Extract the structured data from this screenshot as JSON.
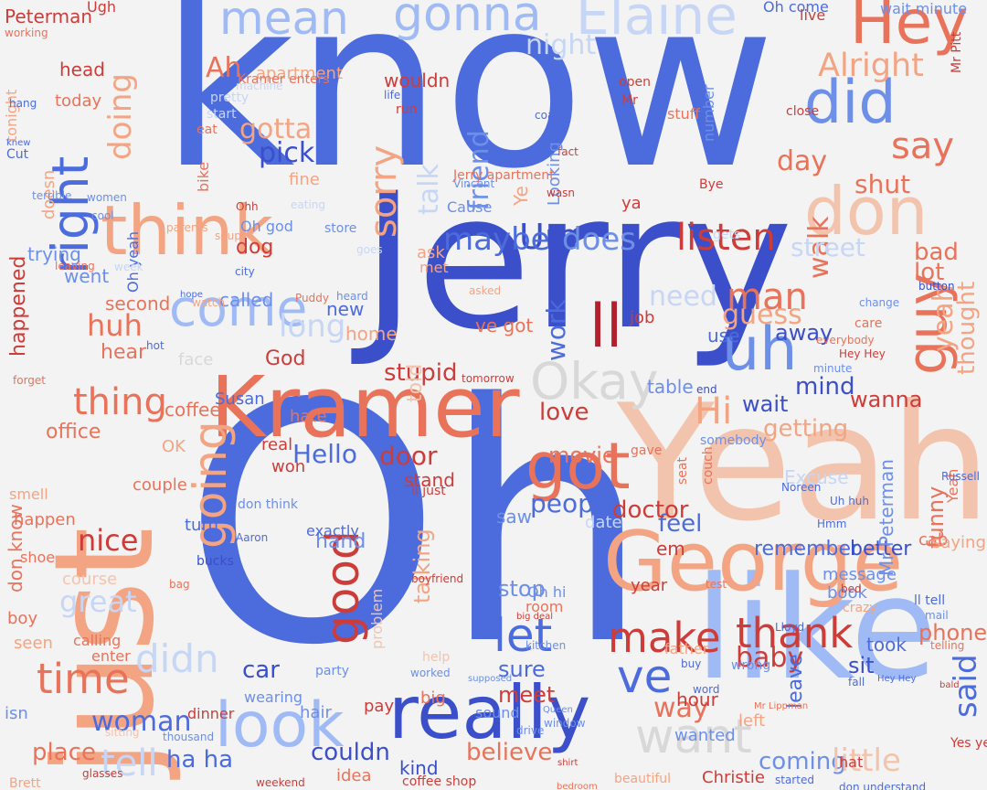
{
  "palette": {
    "blue_dark": "#3a4fc9",
    "blue": "#4c6bdc",
    "blue_mid": "#6d8fe8",
    "blue_light": "#9fbaf5",
    "blue_pale": "#c7d6f5",
    "grey": "#d8d8d8",
    "salmon_pale": "#f2c4ad",
    "salmon": "#f3a483",
    "orange": "#e8735a",
    "red": "#cc3d3a",
    "red_dark": "#b2202e"
  },
  "words": [
    {
      "text": "know",
      "c": "blue"
    },
    {
      "text": "Jerry",
      "c": "blue_dark"
    },
    {
      "text": "Oh",
      "c": "blue"
    },
    {
      "text": "Yeah",
      "c": "salmon_pale"
    },
    {
      "text": "just",
      "c": "salmon"
    },
    {
      "text": "like",
      "c": "blue_light"
    },
    {
      "text": "George",
      "c": "salmon"
    },
    {
      "text": "Kramer",
      "c": "orange"
    },
    {
      "text": "really",
      "c": "blue_dark"
    },
    {
      "text": "think",
      "c": "salmon"
    },
    {
      "text": "look",
      "c": "blue_light"
    },
    {
      "text": "don",
      "c": "salmon_pale"
    },
    {
      "text": "Elaine",
      "c": "blue_pale"
    },
    {
      "text": "mean",
      "c": "blue_light"
    },
    {
      "text": "gonna",
      "c": "blue_light"
    },
    {
      "text": "Hey",
      "c": "orange"
    },
    {
      "text": "did",
      "c": "blue_mid"
    },
    {
      "text": "right",
      "c": "blue"
    },
    {
      "text": "got",
      "c": "orange"
    },
    {
      "text": "come",
      "c": "blue_light"
    },
    {
      "text": "uh",
      "c": "blue_mid"
    },
    {
      "text": "guy",
      "c": "orange"
    },
    {
      "text": "Okay",
      "c": "grey"
    },
    {
      "text": "want",
      "c": "grey"
    },
    {
      "text": "thank",
      "c": "red"
    },
    {
      "text": "make",
      "c": "red"
    },
    {
      "text": "good",
      "c": "red"
    },
    {
      "text": "going",
      "c": "salmon"
    },
    {
      "text": "time",
      "c": "orange"
    },
    {
      "text": "didn",
      "c": "blue_pale"
    },
    {
      "text": "tell",
      "c": "blue_pale"
    },
    {
      "text": "let",
      "c": "blue"
    },
    {
      "text": "ve",
      "c": "blue"
    },
    {
      "text": "ll",
      "c": "red_dark"
    },
    {
      "text": "thing",
      "c": "orange"
    },
    {
      "text": "say",
      "c": "orange"
    },
    {
      "text": "Alright",
      "c": "salmon"
    },
    {
      "text": "Hi",
      "c": "salmon"
    },
    {
      "text": "man",
      "c": "orange"
    },
    {
      "text": "listen",
      "c": "red"
    },
    {
      "text": "sorry",
      "c": "salmon"
    },
    {
      "text": "Um",
      "c": "blue_dark"
    },
    {
      "text": "does",
      "c": "blue_mid"
    },
    {
      "text": "maybe",
      "c": "blue"
    },
    {
      "text": "doing",
      "c": "salmon"
    },
    {
      "text": "night",
      "c": "blue_pale"
    },
    {
      "text": "Ah",
      "c": "orange"
    },
    {
      "text": "gotta",
      "c": "salmon"
    },
    {
      "text": "pick",
      "c": "blue_dark"
    },
    {
      "text": "friend",
      "c": "blue_mid"
    },
    {
      "text": "talk",
      "c": "blue_pale"
    },
    {
      "text": "huh",
      "c": "orange"
    },
    {
      "text": "long",
      "c": "blue_pale"
    },
    {
      "text": "nice",
      "c": "red"
    },
    {
      "text": "great",
      "c": "blue_pale"
    },
    {
      "text": "woman",
      "c": "blue"
    },
    {
      "text": "people",
      "c": "blue"
    },
    {
      "text": "door",
      "c": "red"
    },
    {
      "text": "Hello",
      "c": "blue"
    },
    {
      "text": "stupid",
      "c": "red"
    },
    {
      "text": "work",
      "c": "blue"
    },
    {
      "text": "guess",
      "c": "salmon"
    },
    {
      "text": "need",
      "c": "blue_pale"
    },
    {
      "text": "walk",
      "c": "orange"
    },
    {
      "text": "day",
      "c": "orange"
    },
    {
      "text": "shut",
      "c": "orange"
    },
    {
      "text": "street",
      "c": "blue_pale"
    },
    {
      "text": "bad",
      "c": "orange"
    },
    {
      "text": "lot",
      "c": "orange"
    },
    {
      "text": "said",
      "c": "blue"
    },
    {
      "text": "yeah",
      "c": "salmon"
    },
    {
      "text": "thought",
      "c": "salmon"
    },
    {
      "text": "getting",
      "c": "salmon"
    },
    {
      "text": "wanna",
      "c": "red"
    },
    {
      "text": "love",
      "c": "red"
    },
    {
      "text": "mind",
      "c": "blue_dark"
    },
    {
      "text": "wait",
      "c": "blue_dark"
    },
    {
      "text": "away",
      "c": "blue_dark"
    },
    {
      "text": "movie",
      "c": "orange"
    },
    {
      "text": "feel",
      "c": "blue"
    },
    {
      "text": "doctor",
      "c": "red"
    },
    {
      "text": "remember",
      "c": "blue"
    },
    {
      "text": "better",
      "c": "blue_dark"
    },
    {
      "text": "funny",
      "c": "orange"
    },
    {
      "text": "phone",
      "c": "orange"
    },
    {
      "text": "baby",
      "c": "red"
    },
    {
      "text": "way",
      "c": "orange"
    },
    {
      "text": "coming",
      "c": "blue_mid"
    },
    {
      "text": "little",
      "c": "salmon_pale"
    },
    {
      "text": "believe",
      "c": "orange"
    },
    {
      "text": "couldn",
      "c": "blue_dark"
    },
    {
      "text": "place",
      "c": "orange"
    },
    {
      "text": "ha ha",
      "c": "blue"
    },
    {
      "text": "car",
      "c": "blue_dark"
    },
    {
      "text": "sure",
      "c": "blue"
    },
    {
      "text": "meet",
      "c": "red"
    },
    {
      "text": "stop",
      "c": "blue_mid"
    },
    {
      "text": "talking",
      "c": "salmon"
    },
    {
      "text": "hand",
      "c": "blue_mid"
    },
    {
      "text": "office",
      "c": "orange"
    },
    {
      "text": "coffee",
      "c": "orange"
    },
    {
      "text": "God",
      "c": "red"
    },
    {
      "text": "called",
      "c": "blue_mid"
    },
    {
      "text": "second",
      "c": "orange"
    },
    {
      "text": "went",
      "c": "blue_mid"
    },
    {
      "text": "trying",
      "c": "blue_mid"
    },
    {
      "text": "happened",
      "c": "red"
    },
    {
      "text": "head",
      "c": "red"
    },
    {
      "text": "today",
      "c": "orange"
    },
    {
      "text": "apartment",
      "c": "salmon"
    },
    {
      "text": "wouldn",
      "c": "red"
    },
    {
      "text": "dog",
      "c": "red"
    },
    {
      "text": "fine",
      "c": "salmon"
    },
    {
      "text": "doesn",
      "c": "salmon"
    },
    {
      "text": "bike",
      "c": "orange"
    },
    {
      "text": "Peterman",
      "c": "red"
    },
    {
      "text": "Ugh",
      "c": "red"
    },
    {
      "text": "Oh come",
      "c": "blue"
    },
    {
      "text": "live",
      "c": "red"
    },
    {
      "text": "wait minute",
      "c": "blue_mid"
    },
    {
      "text": "tonight",
      "c": "salmon"
    },
    {
      "text": "hear",
      "c": "orange"
    },
    {
      "text": "told",
      "c": "salmon_pale"
    },
    {
      "text": "new",
      "c": "blue"
    },
    {
      "text": "home",
      "c": "salmon"
    },
    {
      "text": "job",
      "c": "red"
    },
    {
      "text": "ve got",
      "c": "orange"
    },
    {
      "text": "use",
      "c": "blue"
    },
    {
      "text": "table",
      "c": "blue_mid"
    },
    {
      "text": "face",
      "c": "grey"
    },
    {
      "text": "Susan",
      "c": "blue"
    },
    {
      "text": "hate",
      "c": "orange"
    },
    {
      "text": "real",
      "c": "red"
    },
    {
      "text": "won",
      "c": "red"
    },
    {
      "text": "stand",
      "c": "red"
    },
    {
      "text": "date",
      "c": "blue_pale"
    },
    {
      "text": "saw",
      "c": "blue_mid"
    },
    {
      "text": "OK",
      "c": "salmon"
    },
    {
      "text": "cab",
      "c": "orange"
    },
    {
      "text": "saying",
      "c": "salmon"
    },
    {
      "text": "book",
      "c": "blue_mid"
    },
    {
      "text": "year",
      "c": "red"
    },
    {
      "text": "took",
      "c": "blue"
    },
    {
      "text": "sit",
      "c": "blue_dark"
    },
    {
      "text": "leave",
      "c": "blue"
    },
    {
      "text": "hour",
      "c": "red"
    },
    {
      "text": "left",
      "c": "salmon"
    },
    {
      "text": "wanted",
      "c": "blue_mid"
    },
    {
      "text": "hat",
      "c": "red"
    },
    {
      "text": "kind",
      "c": "blue_dark"
    },
    {
      "text": "idea",
      "c": "orange"
    },
    {
      "text": "hair",
      "c": "blue_mid"
    },
    {
      "text": "pay",
      "c": "red"
    },
    {
      "text": "big",
      "c": "orange"
    },
    {
      "text": "problem",
      "c": "salmon_pale"
    },
    {
      "text": "Excuse",
      "c": "blue_pale"
    },
    {
      "text": "Mr Peterman",
      "c": "blue_mid"
    },
    {
      "text": "message",
      "c": "blue_mid"
    },
    {
      "text": "course",
      "c": "salmon_pale"
    },
    {
      "text": "turn",
      "c": "blue"
    },
    {
      "text": "shoe",
      "c": "orange"
    },
    {
      "text": "boy",
      "c": "orange"
    },
    {
      "text": "seen",
      "c": "salmon"
    },
    {
      "text": "smell",
      "c": "salmon"
    },
    {
      "text": "happen",
      "c": "orange"
    },
    {
      "text": "exactly",
      "c": "blue"
    },
    {
      "text": "couple",
      "c": "orange"
    },
    {
      "text": "sound",
      "c": "blue_mid"
    },
    {
      "text": "father",
      "c": "salmon"
    },
    {
      "text": "enter",
      "c": "orange"
    },
    {
      "text": "calling",
      "c": "orange"
    },
    {
      "text": "dinner",
      "c": "red"
    },
    {
      "text": "isn",
      "c": "blue_mid"
    },
    {
      "text": "wearing",
      "c": "blue_mid"
    },
    {
      "text": "Brett",
      "c": "salmon"
    },
    {
      "text": "Christie",
      "c": "red"
    },
    {
      "text": "beautiful",
      "c": "salmon"
    },
    {
      "text": "coffee shop",
      "c": "red"
    },
    {
      "text": "weekend",
      "c": "red"
    },
    {
      "text": "don understand",
      "c": "blue"
    },
    {
      "text": "started",
      "c": "blue"
    },
    {
      "text": "Yes ye",
      "c": "red"
    },
    {
      "text": "Oh hi",
      "c": "blue_mid"
    },
    {
      "text": "Yeah",
      "c": "orange"
    },
    {
      "text": "Ye",
      "c": "salmon"
    },
    {
      "text": "Looking",
      "c": "blue_mid"
    },
    {
      "text": "Cause",
      "c": "blue_mid"
    },
    {
      "text": "Vincent",
      "c": "blue_mid"
    },
    {
      "text": "Jerry apartment",
      "c": "orange"
    },
    {
      "text": "Kramer enters",
      "c": "orange"
    },
    {
      "text": "Oh god",
      "c": "blue_mid"
    },
    {
      "text": "store",
      "c": "blue_mid"
    },
    {
      "text": "Oh yeah",
      "c": "blue"
    },
    {
      "text": "don know",
      "c": "orange"
    },
    {
      "text": "don think",
      "c": "blue_mid"
    },
    {
      "text": "ll just",
      "c": "red"
    },
    {
      "text": "Puddy",
      "c": "orange"
    },
    {
      "text": "heard",
      "c": "blue_mid"
    },
    {
      "text": "Mr Pitt",
      "c": "red"
    },
    {
      "text": "Mr",
      "c": "red"
    },
    {
      "text": "open",
      "c": "red"
    },
    {
      "text": "stuff",
      "c": "orange"
    },
    {
      "text": "number",
      "c": "blue_mid"
    },
    {
      "text": "close",
      "c": "red"
    },
    {
      "text": "pretty",
      "c": "blue_pale"
    },
    {
      "text": "start",
      "c": "blue_pale"
    },
    {
      "text": "eat",
      "c": "orange"
    },
    {
      "text": "working",
      "c": "orange"
    },
    {
      "text": "hot",
      "c": "blue"
    },
    {
      "text": "forget",
      "c": "orange"
    },
    {
      "text": "tomorrow",
      "c": "red"
    },
    {
      "text": "fact",
      "c": "red"
    },
    {
      "text": "wasn",
      "c": "red"
    },
    {
      "text": "Bye",
      "c": "red"
    },
    {
      "text": "gets",
      "c": "blue_pale"
    },
    {
      "text": "ya",
      "c": "red"
    },
    {
      "text": "em",
      "c": "red"
    },
    {
      "text": "end",
      "c": "blue_dark"
    },
    {
      "text": "gave",
      "c": "orange"
    },
    {
      "text": "somebody",
      "c": "blue_mid"
    },
    {
      "text": "seat",
      "c": "orange"
    },
    {
      "text": "couch",
      "c": "orange"
    },
    {
      "text": "Hmm",
      "c": "blue"
    },
    {
      "text": "test",
      "c": "orange"
    },
    {
      "text": "ll tell",
      "c": "blue"
    },
    {
      "text": "crazy",
      "c": "salmon"
    },
    {
      "text": "bed",
      "c": "red"
    },
    {
      "text": "minute",
      "c": "blue_mid"
    },
    {
      "text": "Hey Hey",
      "c": "red"
    },
    {
      "text": "ask",
      "c": "salmon"
    },
    {
      "text": "met",
      "c": "salmon"
    },
    {
      "text": "run",
      "c": "red"
    },
    {
      "text": "life",
      "c": "blue"
    },
    {
      "text": "coat",
      "c": "blue"
    },
    {
      "text": "asked",
      "c": "salmon"
    },
    {
      "text": "goes",
      "c": "blue_pale"
    },
    {
      "text": "city",
      "c": "blue"
    },
    {
      "text": "machine",
      "c": "blue_pale"
    },
    {
      "text": "Cut",
      "c": "blue"
    },
    {
      "text": "knew",
      "c": "blue"
    },
    {
      "text": "terrible",
      "c": "blue_mid"
    },
    {
      "text": "women",
      "c": "blue_mid"
    },
    {
      "text": "cool",
      "c": "blue_mid"
    },
    {
      "text": "hang",
      "c": "blue"
    },
    {
      "text": "parents",
      "c": "salmon"
    },
    {
      "text": "soup",
      "c": "salmon"
    },
    {
      "text": "Ohh",
      "c": "red"
    },
    {
      "text": "eating",
      "c": "blue_pale"
    },
    {
      "text": "watch",
      "c": "salmon"
    },
    {
      "text": "hope",
      "c": "blue"
    },
    {
      "text": "leaving",
      "c": "orange"
    },
    {
      "text": "week",
      "c": "blue_pale"
    },
    {
      "text": "Aaron",
      "c": "blue"
    },
    {
      "text": "Uh huh",
      "c": "blue"
    },
    {
      "text": "Noreen",
      "c": "blue"
    },
    {
      "text": "thousand",
      "c": "blue_mid"
    },
    {
      "text": "sitting",
      "c": "salmon_pale"
    },
    {
      "text": "glasses",
      "c": "red"
    },
    {
      "text": "bag",
      "c": "orange"
    },
    {
      "text": "bucks",
      "c": "blue_dark"
    },
    {
      "text": "party",
      "c": "blue_mid"
    },
    {
      "text": "worked",
      "c": "blue_mid"
    },
    {
      "text": "supposed",
      "c": "blue_mid"
    },
    {
      "text": "help",
      "c": "salmon_pale"
    },
    {
      "text": "mail",
      "c": "blue_mid"
    },
    {
      "text": "Lloyd",
      "c": "blue"
    },
    {
      "text": "buy",
      "c": "blue"
    },
    {
      "text": "word",
      "c": "blue"
    },
    {
      "text": "wrong",
      "c": "blue_mid"
    },
    {
      "text": "care",
      "c": "orange"
    },
    {
      "text": "everybody",
      "c": "orange"
    },
    {
      "text": "change",
      "c": "blue_mid"
    },
    {
      "text": "button",
      "c": "blue_dark"
    },
    {
      "text": "telling",
      "c": "orange"
    },
    {
      "text": "kitchen",
      "c": "blue_mid"
    },
    {
      "text": "room",
      "c": "orange"
    },
    {
      "text": "boyfriend",
      "c": "red"
    },
    {
      "text": "big deal",
      "c": "red"
    },
    {
      "text": "Mr Lippman",
      "c": "orange"
    },
    {
      "text": "window",
      "c": "blue_mid"
    },
    {
      "text": "drive",
      "c": "blue_mid"
    },
    {
      "text": "Queen",
      "c": "blue_mid"
    },
    {
      "text": "shirt",
      "c": "red"
    },
    {
      "text": "bedroom",
      "c": "orange"
    },
    {
      "text": "fall",
      "c": "blue"
    },
    {
      "text": "bald",
      "c": "red"
    },
    {
      "text": "Russell",
      "c": "blue"
    },
    {
      "text": "Hey Hey",
      "c": "blue"
    }
  ]
}
